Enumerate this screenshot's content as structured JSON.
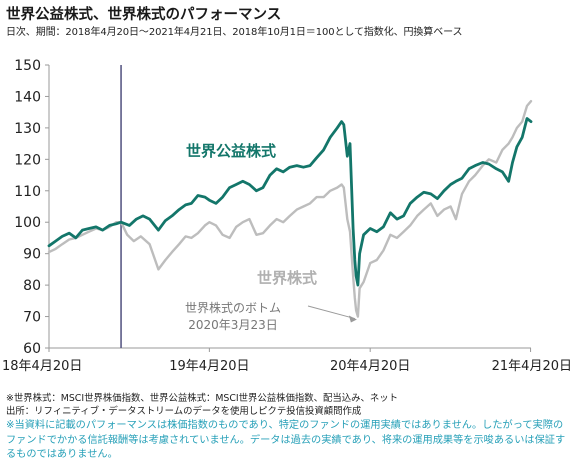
{
  "header": {
    "title": "世界公益株式、世界株式のパフォーマンス",
    "subtitle": "日次、期間：2018年4月20日～2021年4月21日、2018年10月1日＝100として指数化、円換算ベース"
  },
  "footnotes": {
    "line1": "※世界株式：MSCI世界株価指数、世界公益株式：MSCI世界公益株価指数、配当込み、ネット",
    "line2": "出所：リフィニティブ・データストリームのデータを使用しピクテ投信投資顧問作成",
    "warning": "※当資料に記載のパフォーマンスは株価指数のものであり、特定のファンドの運用実績ではありません。したがって実際のファンドでかかる信託報酬等は考慮されていません。データは過去の実績であり、将来の運用成果等を示唆あるいは保証するものではありません。"
  },
  "colors": {
    "utilities": "#13766a",
    "world": "#bdbdbd",
    "marker": "#5b5b86",
    "axis": "#9a9a9a",
    "annotation_text": "#777777"
  },
  "chart_data": {
    "type": "line",
    "xlabel": "",
    "ylabel": "",
    "x_range": [
      "2018-04-20",
      "2021-04-21"
    ],
    "x_ticks": [
      {
        "date": "2018-04-20",
        "label": "18年4月20日"
      },
      {
        "date": "2019-04-20",
        "label": "19年4月20日"
      },
      {
        "date": "2020-04-20",
        "label": "20年4月20日"
      },
      {
        "date": "2021-04-20",
        "label": "21年4月20日"
      }
    ],
    "ylim": [
      60,
      150
    ],
    "y_ticks": [
      60,
      70,
      80,
      90,
      100,
      110,
      120,
      130,
      140,
      150
    ],
    "grid": false,
    "reference_line": {
      "date": "2018-10-01"
    },
    "annotation": {
      "line1": "世界株式のボトム",
      "line2": "2020年3月23日",
      "point": {
        "date": "2020-03-23",
        "value": 70
      }
    },
    "series": [
      {
        "name": "世界公益株式",
        "color": "#13766a",
        "points": [
          [
            "2018-04-20",
            92.5
          ],
          [
            "2018-05-05",
            94
          ],
          [
            "2018-05-20",
            95.5
          ],
          [
            "2018-06-05",
            96.5
          ],
          [
            "2018-06-20",
            95
          ],
          [
            "2018-07-05",
            97.5
          ],
          [
            "2018-07-20",
            98
          ],
          [
            "2018-08-05",
            98.5
          ],
          [
            "2018-08-20",
            97.5
          ],
          [
            "2018-09-05",
            99
          ],
          [
            "2018-09-20",
            99.5
          ],
          [
            "2018-10-01",
            100
          ],
          [
            "2018-10-20",
            99
          ],
          [
            "2018-11-05",
            101
          ],
          [
            "2018-11-20",
            102
          ],
          [
            "2018-12-05",
            101
          ],
          [
            "2018-12-25",
            97.5
          ],
          [
            "2019-01-10",
            100.5
          ],
          [
            "2019-01-25",
            102
          ],
          [
            "2019-02-10",
            104
          ],
          [
            "2019-02-25",
            105.5
          ],
          [
            "2019-03-10",
            106
          ],
          [
            "2019-03-25",
            108.5
          ],
          [
            "2019-04-10",
            108
          ],
          [
            "2019-04-20",
            107
          ],
          [
            "2019-05-05",
            106
          ],
          [
            "2019-05-20",
            108
          ],
          [
            "2019-06-05",
            111
          ],
          [
            "2019-06-20",
            112
          ],
          [
            "2019-07-05",
            113
          ],
          [
            "2019-07-20",
            112
          ],
          [
            "2019-08-05",
            110
          ],
          [
            "2019-08-20",
            111
          ],
          [
            "2019-09-05",
            115
          ],
          [
            "2019-09-20",
            117
          ],
          [
            "2019-10-05",
            116
          ],
          [
            "2019-10-20",
            117.5
          ],
          [
            "2019-11-05",
            118
          ],
          [
            "2019-11-20",
            117.5
          ],
          [
            "2019-12-05",
            118
          ],
          [
            "2019-12-20",
            120.5
          ],
          [
            "2020-01-05",
            123
          ],
          [
            "2020-01-20",
            127
          ],
          [
            "2020-02-05",
            130
          ],
          [
            "2020-02-15",
            132
          ],
          [
            "2020-02-20",
            131
          ],
          [
            "2020-02-28",
            121
          ],
          [
            "2020-03-05",
            125
          ],
          [
            "2020-03-12",
            98
          ],
          [
            "2020-03-16",
            88
          ],
          [
            "2020-03-19",
            83
          ],
          [
            "2020-03-23",
            80
          ],
          [
            "2020-03-27",
            90
          ],
          [
            "2020-04-05",
            96
          ],
          [
            "2020-04-20",
            98
          ],
          [
            "2020-05-05",
            97
          ],
          [
            "2020-05-20",
            98.5
          ],
          [
            "2020-06-05",
            103
          ],
          [
            "2020-06-20",
            101
          ],
          [
            "2020-07-05",
            102
          ],
          [
            "2020-07-20",
            106
          ],
          [
            "2020-08-05",
            108
          ],
          [
            "2020-08-20",
            109.5
          ],
          [
            "2020-09-05",
            109
          ],
          [
            "2020-09-20",
            107.5
          ],
          [
            "2020-10-05",
            110
          ],
          [
            "2020-10-20",
            112
          ],
          [
            "2020-11-01",
            113
          ],
          [
            "2020-11-15",
            114
          ],
          [
            "2020-12-01",
            117
          ],
          [
            "2020-12-15",
            118
          ],
          [
            "2021-01-01",
            119
          ],
          [
            "2021-01-15",
            118.5
          ],
          [
            "2021-02-01",
            117
          ],
          [
            "2021-02-15",
            116
          ],
          [
            "2021-03-01",
            113
          ],
          [
            "2021-03-10",
            119
          ],
          [
            "2021-03-20",
            124
          ],
          [
            "2021-04-01",
            127
          ],
          [
            "2021-04-12",
            133
          ],
          [
            "2021-04-21",
            132
          ]
        ]
      },
      {
        "name": "世界株式",
        "color": "#bdbdbd",
        "points": [
          [
            "2018-04-20",
            90.5
          ],
          [
            "2018-05-05",
            91.5
          ],
          [
            "2018-05-20",
            93
          ],
          [
            "2018-06-05",
            94.5
          ],
          [
            "2018-06-20",
            95
          ],
          [
            "2018-07-05",
            96
          ],
          [
            "2018-07-20",
            97
          ],
          [
            "2018-08-05",
            98
          ],
          [
            "2018-08-20",
            97.5
          ],
          [
            "2018-09-05",
            98.5
          ],
          [
            "2018-09-20",
            100
          ],
          [
            "2018-10-01",
            100
          ],
          [
            "2018-10-15",
            96
          ],
          [
            "2018-10-30",
            94
          ],
          [
            "2018-11-15",
            95.5
          ],
          [
            "2018-12-05",
            93
          ],
          [
            "2018-12-25",
            85
          ],
          [
            "2019-01-10",
            88
          ],
          [
            "2019-01-25",
            90.5
          ],
          [
            "2019-02-10",
            93
          ],
          [
            "2019-02-25",
            95.5
          ],
          [
            "2019-03-10",
            95
          ],
          [
            "2019-03-25",
            96.5
          ],
          [
            "2019-04-10",
            99
          ],
          [
            "2019-04-20",
            100
          ],
          [
            "2019-05-05",
            99
          ],
          [
            "2019-05-20",
            96
          ],
          [
            "2019-06-05",
            95
          ],
          [
            "2019-06-20",
            98.5
          ],
          [
            "2019-07-05",
            100
          ],
          [
            "2019-07-20",
            101
          ],
          [
            "2019-08-05",
            96
          ],
          [
            "2019-08-20",
            96.5
          ],
          [
            "2019-09-05",
            99
          ],
          [
            "2019-09-20",
            101
          ],
          [
            "2019-10-05",
            100
          ],
          [
            "2019-10-20",
            102
          ],
          [
            "2019-11-05",
            104
          ],
          [
            "2019-11-20",
            105
          ],
          [
            "2019-12-05",
            106
          ],
          [
            "2019-12-20",
            108
          ],
          [
            "2020-01-05",
            108
          ],
          [
            "2020-01-20",
            110
          ],
          [
            "2020-02-05",
            111
          ],
          [
            "2020-02-15",
            112
          ],
          [
            "2020-02-20",
            111
          ],
          [
            "2020-02-28",
            101
          ],
          [
            "2020-03-05",
            97
          ],
          [
            "2020-03-12",
            83
          ],
          [
            "2020-03-16",
            76
          ],
          [
            "2020-03-19",
            72
          ],
          [
            "2020-03-23",
            70
          ],
          [
            "2020-03-27",
            79
          ],
          [
            "2020-04-05",
            81
          ],
          [
            "2020-04-20",
            87
          ],
          [
            "2020-05-05",
            88
          ],
          [
            "2020-05-20",
            91
          ],
          [
            "2020-06-05",
            96
          ],
          [
            "2020-06-20",
            95
          ],
          [
            "2020-07-05",
            97
          ],
          [
            "2020-07-20",
            99
          ],
          [
            "2020-08-05",
            102
          ],
          [
            "2020-08-20",
            104
          ],
          [
            "2020-09-05",
            106
          ],
          [
            "2020-09-20",
            102
          ],
          [
            "2020-10-05",
            104
          ],
          [
            "2020-10-20",
            105
          ],
          [
            "2020-11-01",
            101
          ],
          [
            "2020-11-15",
            109
          ],
          [
            "2020-12-01",
            113
          ],
          [
            "2020-12-15",
            115
          ],
          [
            "2021-01-01",
            118
          ],
          [
            "2021-01-15",
            120
          ],
          [
            "2021-02-01",
            119
          ],
          [
            "2021-02-15",
            123
          ],
          [
            "2021-03-01",
            125
          ],
          [
            "2021-03-10",
            127
          ],
          [
            "2021-03-20",
            130
          ],
          [
            "2021-04-01",
            132
          ],
          [
            "2021-04-12",
            137
          ],
          [
            "2021-04-21",
            138.5
          ]
        ]
      }
    ]
  }
}
